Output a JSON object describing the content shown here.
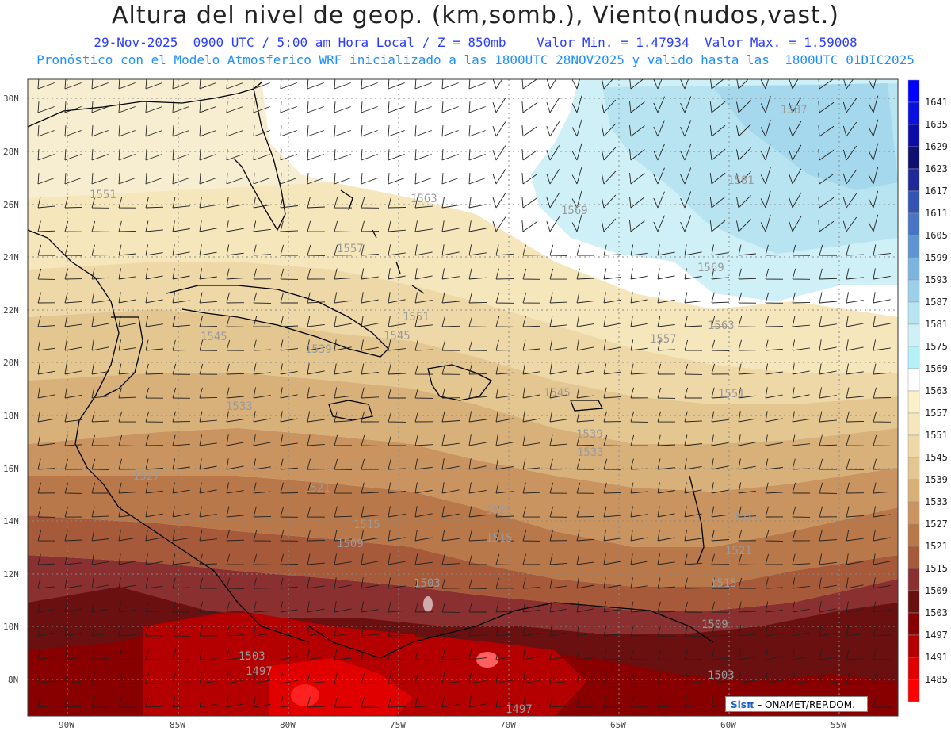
{
  "header": {
    "title": "Altura del nivel de geop. (km,somb.), Viento(nudos,vast.)",
    "line2": "29-Nov-2025  0900 UTC / 5:00 am Hora Local / Z = 850mb    Valor Min. = 1.47934  Valor Max. = 1.59008",
    "line3": "Pronóstico con el Modelo Atmosferico WRF inicializado a las 1800UTC_28NOV2025 y valido hasta las  1800UTC_01DIC2025"
  },
  "axes": {
    "lat_labels": [
      "30N",
      "28N",
      "26N",
      "24N",
      "22N",
      "20N",
      "18N",
      "16N",
      "14N",
      "12N",
      "10N",
      "8N"
    ],
    "lon_labels": [
      "90W",
      "85W",
      "80W",
      "75W",
      "70W",
      "65W",
      "60W",
      "55W"
    ]
  },
  "colorbar": {
    "levels": [
      "1641",
      "1635",
      "1629",
      "1623",
      "1617",
      "1611",
      "1605",
      "1599",
      "1593",
      "1587",
      "1581",
      "1575",
      "1569",
      "1563",
      "1557",
      "1551",
      "1545",
      "1539",
      "1533",
      "1527",
      "1521",
      "1515",
      "1509",
      "1503",
      "1497",
      "1491",
      "1485"
    ],
    "colors": [
      "#0000ff",
      "#0a10e0",
      "#0c0ca8",
      "#101070",
      "#1f2a98",
      "#3454b4",
      "#4a74c4",
      "#5e94d0",
      "#7cb4de",
      "#9cd0ea",
      "#b8e4f2",
      "#d0f0f8",
      "#b4f0f8",
      "#ffffff",
      "#fbf0c8",
      "#f5e6bc",
      "#eed8a8",
      "#e3c690",
      "#d8b07a",
      "#c99460",
      "#b8784a",
      "#a65a3a",
      "#8a3030",
      "#6a1010",
      "#880000",
      "#b40000",
      "#e00000",
      "#ff0000"
    ]
  },
  "contour_labels": [
    {
      "text": "1587"
    },
    {
      "text": "1581"
    },
    {
      "text": "1569"
    },
    {
      "text": "1569"
    },
    {
      "text": "1563"
    },
    {
      "text": "1563"
    },
    {
      "text": "1557"
    },
    {
      "text": "1557"
    },
    {
      "text": "1551"
    },
    {
      "text": "1551"
    },
    {
      "text": "1551"
    },
    {
      "text": "1545"
    },
    {
      "text": "1545"
    },
    {
      "text": "1545"
    },
    {
      "text": "1539"
    },
    {
      "text": "1539"
    },
    {
      "text": "1533"
    },
    {
      "text": "1533"
    },
    {
      "text": "1527"
    },
    {
      "text": "1527"
    },
    {
      "text": "1521"
    },
    {
      "text": "1521"
    },
    {
      "text": "1521"
    },
    {
      "text": "1515"
    },
    {
      "text": "1515"
    },
    {
      "text": "1515"
    },
    {
      "text": "1509"
    },
    {
      "text": "1509"
    },
    {
      "text": "1503"
    },
    {
      "text": "1503"
    },
    {
      "text": "1503"
    },
    {
      "text": "1497"
    },
    {
      "text": "1497"
    }
  ],
  "credit": {
    "logo": "Sisπ",
    "text": " – ONAMET/REP.DOM."
  }
}
